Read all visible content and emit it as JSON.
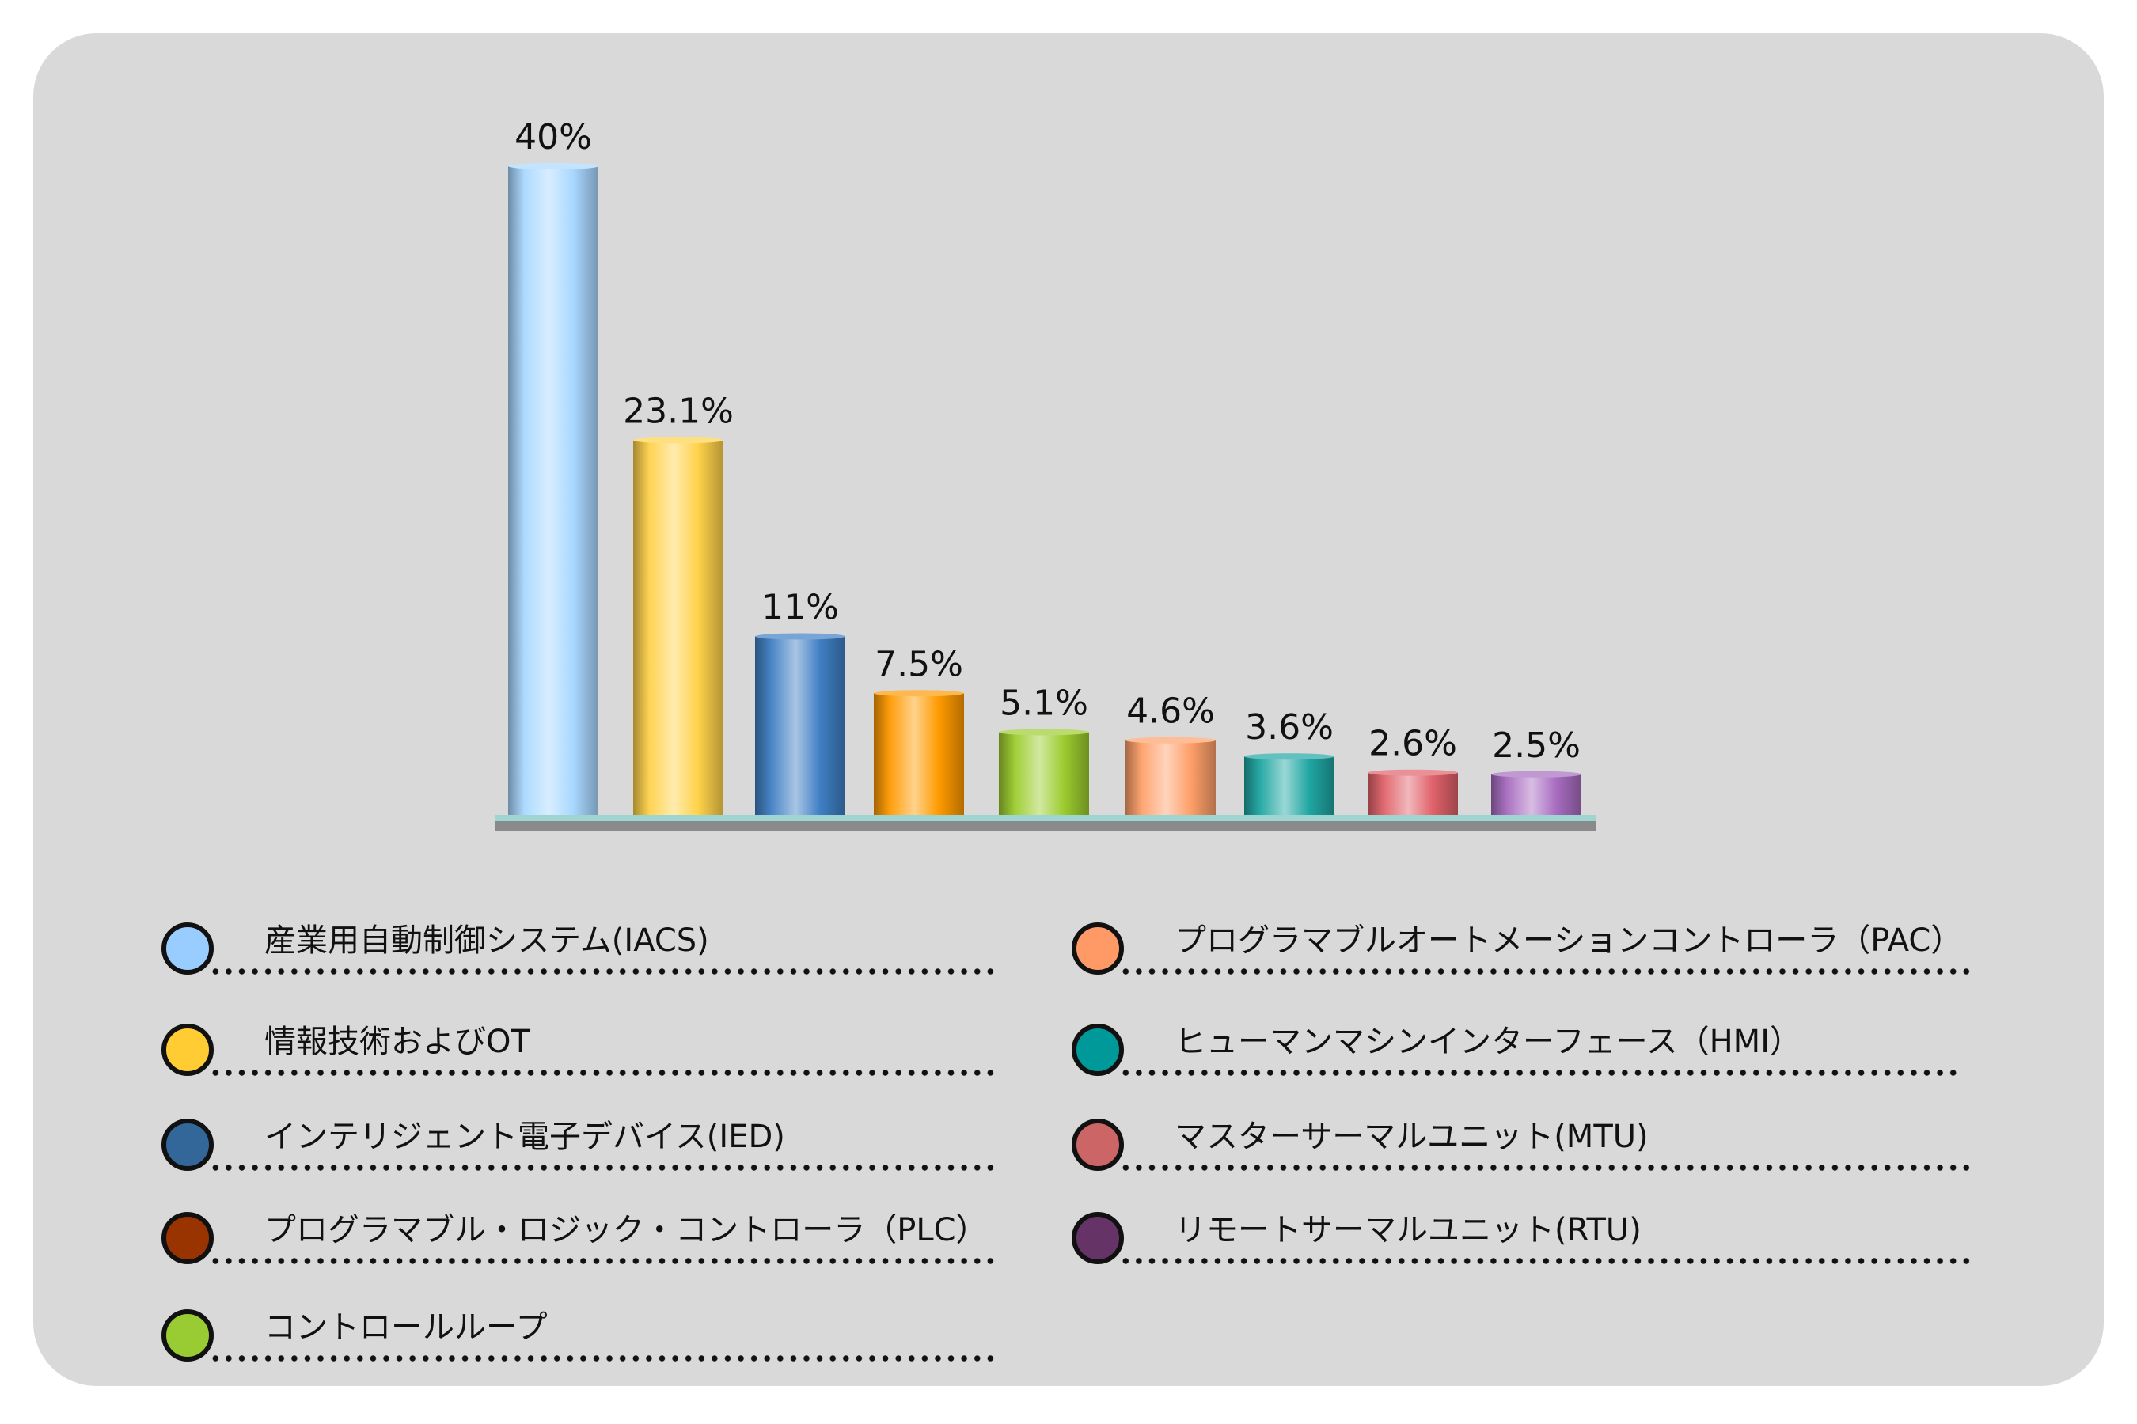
{
  "chart_data": {
    "type": "bar",
    "categories": [
      "産業用自動制御システム(IACS)",
      "情報技術およびOT",
      "インテリジェント電子デバイス(IED)",
      "プログラマブル・ロジック・コントローラ（PLC）",
      "コントロールループ",
      "プログラマブルオートメーションコントローラ（PAC）",
      "ヒューマンマシンインターフェース（HMI）",
      "マスターサーマルユニット(MTU)",
      "リモートサーマルユニット(RTU)"
    ],
    "values": [
      40,
      23.1,
      11,
      7.5,
      5.1,
      4.6,
      3.6,
      2.6,
      2.5
    ],
    "data_labels": [
      "40%",
      "23.1%",
      "11%",
      "7.5%",
      "5.1%",
      "4.6%",
      "3.6%",
      "2.6%",
      "2.5%"
    ],
    "colors": [
      "#a9d8ff",
      "#ffd24a",
      "#3f7fc4",
      "#ff9a00",
      "#9ccc2e",
      "#ffa06a",
      "#1fa6a2",
      "#e0626a",
      "#a86cc0"
    ],
    "legend_colors": [
      "#99ccff",
      "#ffcc33",
      "#336699",
      "#993300",
      "#99cc33",
      "#ff9966",
      "#009999",
      "#cc6666",
      "#663366"
    ],
    "ylim": [
      0,
      40
    ],
    "grid": false,
    "legend_position": "bottom"
  }
}
